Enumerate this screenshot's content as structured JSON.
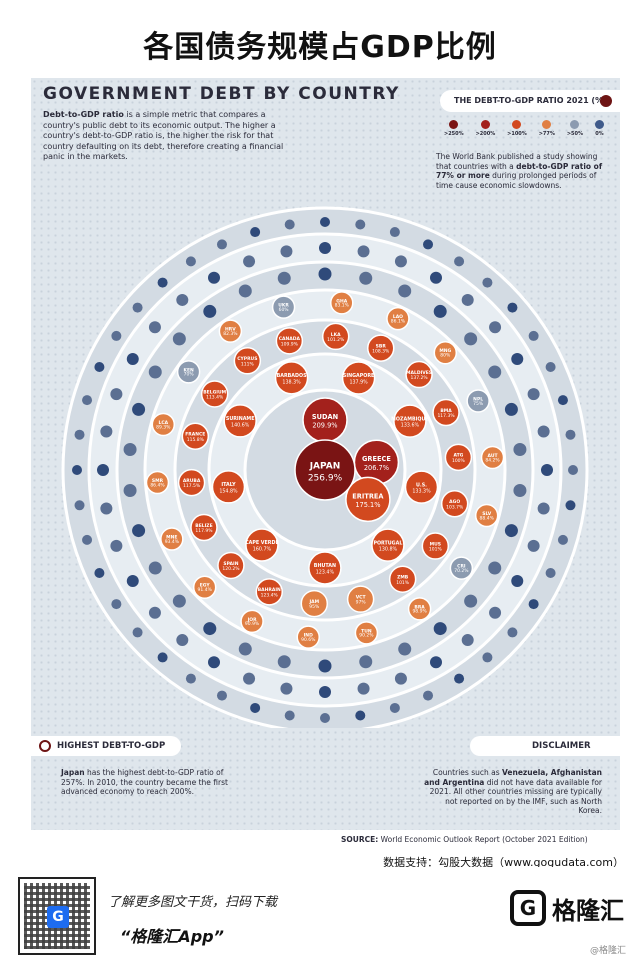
{
  "page_title": "各国债务规模占GDP比例",
  "poster": {
    "title": "GOVERNMENT DEBT BY COUNTRY",
    "intro_bold": "Debt-to-GDP ratio",
    "intro_rest": " is a simple metric that compares a country's public debt to its economic output. The higher a country's debt-to-GDP ratio is, the higher the risk for that country defaulting on its debt, therefore creating a financial panic in the markets.",
    "legend_title": "THE DEBT-TO-GDP RATIO 2021 (%)",
    "legend": [
      {
        "label": ">250%",
        "color": "#7a1414"
      },
      {
        "label": ">200%",
        "color": "#a3211c"
      },
      {
        "label": ">100%",
        "color": "#d2491f"
      },
      {
        "label": ">77%",
        "color": "#e07f43"
      },
      {
        "label": ">50%",
        "color": "#8c9bb0"
      },
      {
        "label": "0%",
        "color": "#3f5a8a"
      }
    ],
    "wb_text_pre": "The World Bank published a study showing that countries with a ",
    "wb_text_bold": "debt-to-GDP ratio of 77% or more",
    "wb_text_post": " during prolonged periods of time cause economic slowdowns.",
    "highest_head": "HIGHEST DEBT-TO-GDP",
    "highest_bold": "Japan",
    "highest_text": " has the highest debt-to-GDP ratio of 257%. In 2010, the country became the first advanced economy to reach 200%.",
    "disclaimer_head": "DISCLAIMER",
    "disclaimer_pre": "Countries such as ",
    "disclaimer_bold": "Venezuela, Afghanistan and Argentina",
    "disclaimer_post": " did not have data available for 2021. All other countries missing are typically not reported on by the IMF, such as North Korea.",
    "source_label": "SOURCE:",
    "source_text": " World Economic Outlook Report (October 2021 Edition)"
  },
  "chart_data": {
    "type": "bubble-rings",
    "unit": "%",
    "center": {
      "label": "JAPAN",
      "value": 256.9
    },
    "ring1": [
      {
        "label": "SUDAN",
        "value": 209.9
      },
      {
        "label": "GREECE",
        "value": 206.7
      },
      {
        "label": "ERITREA",
        "value": 175.1
      }
    ],
    "ring2": [
      {
        "label": "SINGAPORE",
        "value": 137.9
      },
      {
        "label": "MOZAMBIQUE",
        "value": 133.6
      },
      {
        "label": "U.S.",
        "value": 133.3
      },
      {
        "label": "PORTUGAL",
        "value": 130.8
      },
      {
        "label": "BHUTAN",
        "value": 123.4
      },
      {
        "label": "CAPE VERDE",
        "value": 160.7
      },
      {
        "label": "ITALY",
        "value": 154.8
      },
      {
        "label": "SURINAME",
        "value": 140.6
      },
      {
        "label": "BARBADOS",
        "value": 138.3
      }
    ],
    "ring3": [
      {
        "label": "LKA",
        "value": 101.2
      },
      {
        "label": "SBR",
        "value": 108.3
      },
      {
        "label": "MALDIVES",
        "value": 137.2
      },
      {
        "label": "BMA",
        "value": 117.3
      },
      {
        "label": "ATG",
        "value": 100.0
      },
      {
        "label": "AGO",
        "value": 103.7
      },
      {
        "label": "MUS",
        "value": 101.0
      },
      {
        "label": "ZMB",
        "value": 101.0
      },
      {
        "label": "VCT",
        "value": 97.0
      },
      {
        "label": "JAM",
        "value": 95.0
      },
      {
        "label": "BAHRAIN",
        "value": 123.4
      },
      {
        "label": "SPAIN",
        "value": 120.2
      },
      {
        "label": "BELIZE",
        "value": 117.9
      },
      {
        "label": "ARUBA",
        "value": 117.5
      },
      {
        "label": "FRANCE",
        "value": 115.8
      },
      {
        "label": "BELGIUM",
        "value": 113.4
      },
      {
        "label": "CYPRUS",
        "value": 111.0
      },
      {
        "label": "CANADA",
        "value": 109.9
      }
    ],
    "ring4": [
      {
        "label": "GHA",
        "value": 83.1
      },
      {
        "label": "LAO",
        "value": 86.1
      },
      {
        "label": "MNG",
        "value": 80.0
      },
      {
        "label": "NPL",
        "value": 75.0
      },
      {
        "label": "AUT",
        "value": 84.2
      },
      {
        "label": "SLV",
        "value": 88.4
      },
      {
        "label": "CRI",
        "value": 70.2
      },
      {
        "label": "BRA",
        "value": 98.9
      },
      {
        "label": "TUN",
        "value": 90.2
      },
      {
        "label": "IND",
        "value": 90.6
      },
      {
        "label": "JOR",
        "value": 90.9
      },
      {
        "label": "EGY",
        "value": 91.4
      },
      {
        "label": "MNE",
        "value": 93.4
      },
      {
        "label": "SMR",
        "value": 86.4
      },
      {
        "label": "LCA",
        "value": 89.3
      },
      {
        "label": "KEN",
        "value": 70.0
      },
      {
        "label": "HRV",
        "value": 82.3
      },
      {
        "label": "UKR",
        "value": 60.0
      }
    ]
  }
}
